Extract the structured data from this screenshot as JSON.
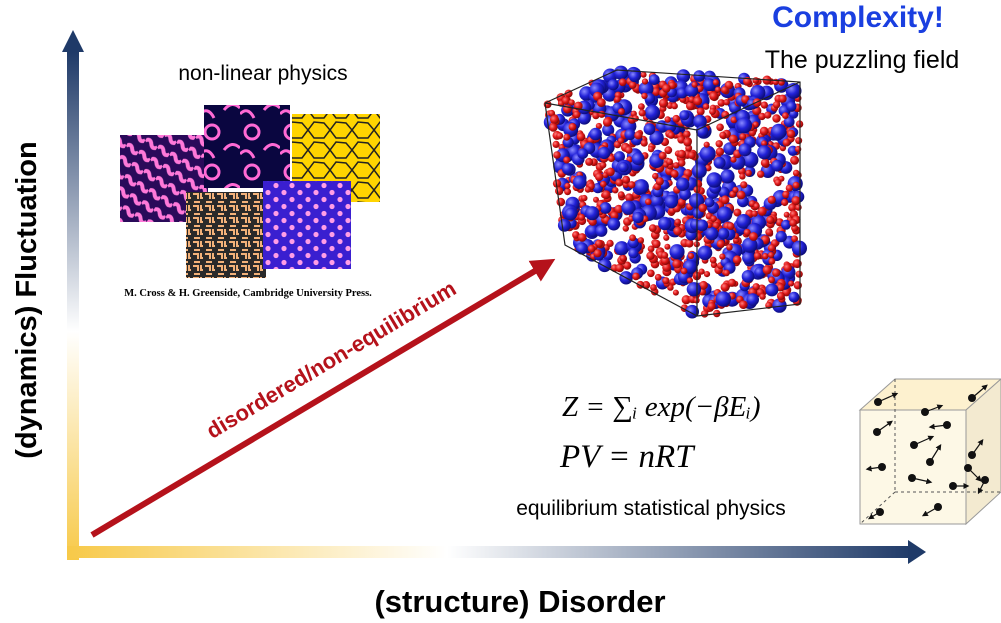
{
  "header": {
    "title": "Complexity!",
    "subtitle": "The puzzling field"
  },
  "axes": {
    "y_label": "(dynamics) Fluctuation",
    "x_label": "(structure) Disorder"
  },
  "nonlinear": {
    "heading": "non-linear physics",
    "credit": "M. Cross & H. Greenside, Cambridge University Press."
  },
  "diagonal_arrow": {
    "label": "disordered/non-equilibrium"
  },
  "equations": {
    "partition_function": "Z = ∑ᵢ exp(−βEᵢ)",
    "ideal_gas": "PV = nRT"
  },
  "equilibrium": {
    "caption": "equilibrium statistical physics"
  },
  "colors": {
    "title": "#1a3fe0",
    "arrow_red": "#b5121b",
    "axis_dark": "#1f3a68",
    "axis_gold": "#f7c948",
    "sphere_red": "#e01818",
    "sphere_blue": "#2222d8",
    "box_fill": "#fdf8e6"
  },
  "icons": {
    "axis_arrowheads": "triangle-arrow-icon",
    "particle_arrows": "velocity-arrow-icon"
  }
}
